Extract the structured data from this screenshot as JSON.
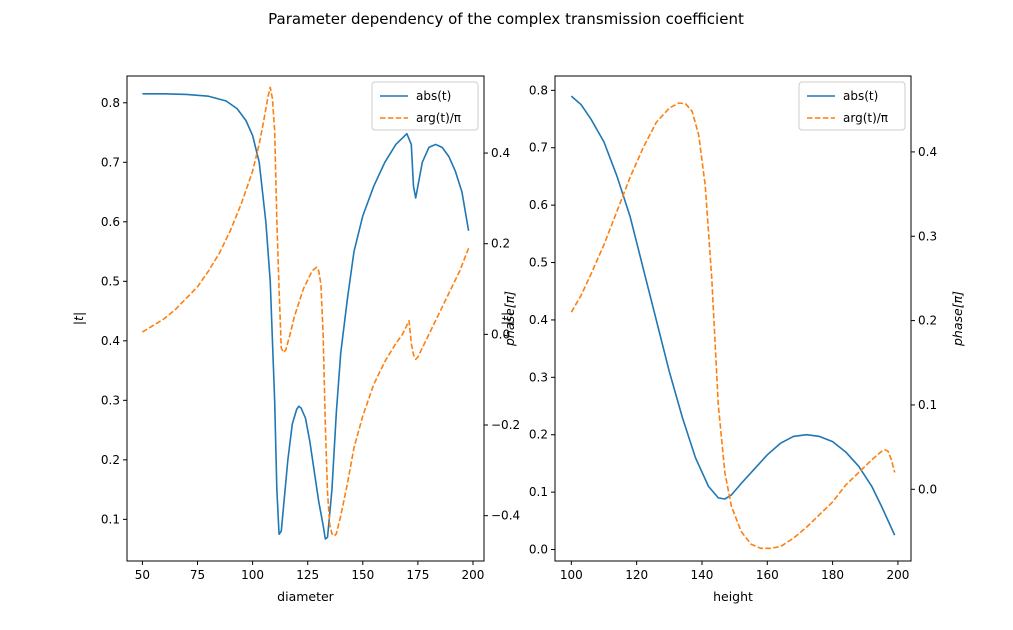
{
  "chart_data": {
    "title": "Parameter dependency of the complex transmission coefficient",
    "colors": {
      "abs": "#1f77b4",
      "arg": "#ff7f0e"
    },
    "panels": [
      {
        "type": "line",
        "xlabel": "diameter",
        "ylabel_left": "|t|",
        "ylabel_right": "phase[π]",
        "xlim": [
          43,
          205
        ],
        "ylim_left": [
          0.03,
          0.845
        ],
        "ylim_right": [
          -0.5,
          0.57
        ],
        "xticks": [
          50,
          75,
          100,
          125,
          150,
          175,
          200
        ],
        "yticks_left": [
          0.1,
          0.2,
          0.3,
          0.4,
          0.5,
          0.6,
          0.7,
          0.8
        ],
        "yticks_right": [
          -0.4,
          -0.2,
          0.0,
          0.2,
          0.4
        ],
        "legend": {
          "position": "top-right",
          "entries": [
            "abs(t)",
            "arg(t)/π"
          ]
        },
        "series": [
          {
            "name": "abs(t)",
            "axis": "left",
            "style": "solid",
            "points": [
              [
                50,
                0.815
              ],
              [
                60,
                0.815
              ],
              [
                70,
                0.814
              ],
              [
                80,
                0.811
              ],
              [
                88,
                0.803
              ],
              [
                93,
                0.79
              ],
              [
                97,
                0.77
              ],
              [
                100,
                0.745
              ],
              [
                103,
                0.7
              ],
              [
                106,
                0.6
              ],
              [
                108,
                0.5
              ],
              [
                110,
                0.3
              ],
              [
                111,
                0.15
              ],
              [
                112,
                0.075
              ],
              [
                113,
                0.08
              ],
              [
                114,
                0.12
              ],
              [
                116,
                0.2
              ],
              [
                118,
                0.26
              ],
              [
                120,
                0.285
              ],
              [
                121,
                0.29
              ],
              [
                122,
                0.287
              ],
              [
                124,
                0.27
              ],
              [
                126,
                0.23
              ],
              [
                128,
                0.18
              ],
              [
                130,
                0.13
              ],
              [
                132,
                0.09
              ],
              [
                133,
                0.067
              ],
              [
                134,
                0.07
              ],
              [
                136,
                0.15
              ],
              [
                138,
                0.28
              ],
              [
                140,
                0.38
              ],
              [
                143,
                0.47
              ],
              [
                146,
                0.55
              ],
              [
                150,
                0.61
              ],
              [
                155,
                0.66
              ],
              [
                160,
                0.7
              ],
              [
                165,
                0.73
              ],
              [
                170,
                0.748
              ],
              [
                172,
                0.73
              ],
              [
                173,
                0.66
              ],
              [
                174,
                0.64
              ],
              [
                175,
                0.66
              ],
              [
                177,
                0.7
              ],
              [
                180,
                0.725
              ],
              [
                183,
                0.73
              ],
              [
                186,
                0.725
              ],
              [
                189,
                0.71
              ],
              [
                192,
                0.685
              ],
              [
                195,
                0.65
              ],
              [
                198,
                0.585
              ]
            ]
          },
          {
            "name": "arg(t)/π",
            "axis": "right",
            "style": "dashed",
            "points": [
              [
                50,
                0.005
              ],
              [
                55,
                0.02
              ],
              [
                60,
                0.035
              ],
              [
                65,
                0.055
              ],
              [
                70,
                0.08
              ],
              [
                75,
                0.105
              ],
              [
                80,
                0.14
              ],
              [
                85,
                0.18
              ],
              [
                90,
                0.23
              ],
              [
                95,
                0.29
              ],
              [
                100,
                0.36
              ],
              [
                103,
                0.42
              ],
              [
                105,
                0.47
              ],
              [
                107,
                0.525
              ],
              [
                108,
                0.545
              ],
              [
                109,
                0.52
              ],
              [
                110,
                0.45
              ],
              [
                111,
                0.25
              ],
              [
                112,
                0.1
              ],
              [
                113,
                -0.03
              ],
              [
                114,
                -0.04
              ],
              [
                115,
                -0.035
              ],
              [
                117,
                0.0
              ],
              [
                119,
                0.04
              ],
              [
                121,
                0.07
              ],
              [
                123,
                0.1
              ],
              [
                125,
                0.12
              ],
              [
                127,
                0.14
              ],
              [
                129,
                0.148
              ],
              [
                130,
                0.14
              ],
              [
                131,
                0.11
              ],
              [
                132,
                0.0
              ],
              [
                133,
                -0.2
              ],
              [
                134,
                -0.35
              ],
              [
                135,
                -0.42
              ],
              [
                136,
                -0.44
              ],
              [
                137,
                -0.445
              ],
              [
                138,
                -0.44
              ],
              [
                140,
                -0.4
              ],
              [
                143,
                -0.33
              ],
              [
                146,
                -0.25
              ],
              [
                150,
                -0.18
              ],
              [
                155,
                -0.11
              ],
              [
                160,
                -0.06
              ],
              [
                165,
                -0.02
              ],
              [
                168,
                0.0
              ],
              [
                170,
                0.02
              ],
              [
                171,
                0.03
              ],
              [
                172,
                -0.02
              ],
              [
                173,
                -0.045
              ],
              [
                174,
                -0.055
              ],
              [
                175,
                -0.05
              ],
              [
                178,
                -0.02
              ],
              [
                182,
                0.02
              ],
              [
                186,
                0.06
              ],
              [
                190,
                0.1
              ],
              [
                194,
                0.14
              ],
              [
                198,
                0.19
              ]
            ]
          }
        ]
      },
      {
        "type": "line",
        "xlabel": "height",
        "ylabel_left": "|t|",
        "ylabel_right": "phase[π]",
        "xlim": [
          95,
          204
        ],
        "ylim_left": [
          -0.02,
          0.825
        ],
        "ylim_right": [
          -0.085,
          0.49
        ],
        "xticks": [
          100,
          120,
          140,
          160,
          180,
          200
        ],
        "yticks_left": [
          0.0,
          0.1,
          0.2,
          0.3,
          0.4,
          0.5,
          0.6,
          0.7,
          0.8
        ],
        "yticks_right": [
          0.0,
          0.1,
          0.2,
          0.3,
          0.4
        ],
        "legend": {
          "position": "top-right",
          "entries": [
            "abs(t)",
            "arg(t)/π"
          ]
        },
        "series": [
          {
            "name": "abs(t)",
            "axis": "left",
            "style": "solid",
            "points": [
              [
                100,
                0.79
              ],
              [
                103,
                0.775
              ],
              [
                106,
                0.75
              ],
              [
                110,
                0.71
              ],
              [
                114,
                0.65
              ],
              [
                118,
                0.58
              ],
              [
                122,
                0.49
              ],
              [
                126,
                0.4
              ],
              [
                130,
                0.31
              ],
              [
                134,
                0.23
              ],
              [
                138,
                0.16
              ],
              [
                142,
                0.11
              ],
              [
                145,
                0.09
              ],
              [
                147,
                0.088
              ],
              [
                149,
                0.095
              ],
              [
                152,
                0.115
              ],
              [
                156,
                0.14
              ],
              [
                160,
                0.165
              ],
              [
                164,
                0.185
              ],
              [
                168,
                0.197
              ],
              [
                172,
                0.2
              ],
              [
                176,
                0.197
              ],
              [
                180,
                0.188
              ],
              [
                184,
                0.17
              ],
              [
                188,
                0.145
              ],
              [
                192,
                0.11
              ],
              [
                195,
                0.075
              ],
              [
                199,
                0.025
              ]
            ]
          },
          {
            "name": "arg(t)/π",
            "axis": "right",
            "style": "dashed",
            "points": [
              [
                100,
                0.21
              ],
              [
                103,
                0.23
              ],
              [
                106,
                0.255
              ],
              [
                110,
                0.29
              ],
              [
                114,
                0.33
              ],
              [
                118,
                0.37
              ],
              [
                122,
                0.405
              ],
              [
                126,
                0.435
              ],
              [
                130,
                0.452
              ],
              [
                133,
                0.458
              ],
              [
                135,
                0.457
              ],
              [
                137,
                0.448
              ],
              [
                139,
                0.42
              ],
              [
                141,
                0.36
              ],
              [
                143,
                0.25
              ],
              [
                145,
                0.1
              ],
              [
                147,
                0.02
              ],
              [
                149,
                -0.02
              ],
              [
                152,
                -0.05
              ],
              [
                155,
                -0.065
              ],
              [
                158,
                -0.07
              ],
              [
                161,
                -0.07
              ],
              [
                164,
                -0.068
              ],
              [
                168,
                -0.058
              ],
              [
                172,
                -0.045
              ],
              [
                176,
                -0.03
              ],
              [
                180,
                -0.015
              ],
              [
                184,
                0.005
              ],
              [
                188,
                0.02
              ],
              [
                192,
                0.035
              ],
              [
                195,
                0.045
              ],
              [
                196,
                0.047
              ],
              [
                197,
                0.045
              ],
              [
                198,
                0.035
              ],
              [
                199,
                0.02
              ]
            ]
          }
        ]
      }
    ]
  }
}
